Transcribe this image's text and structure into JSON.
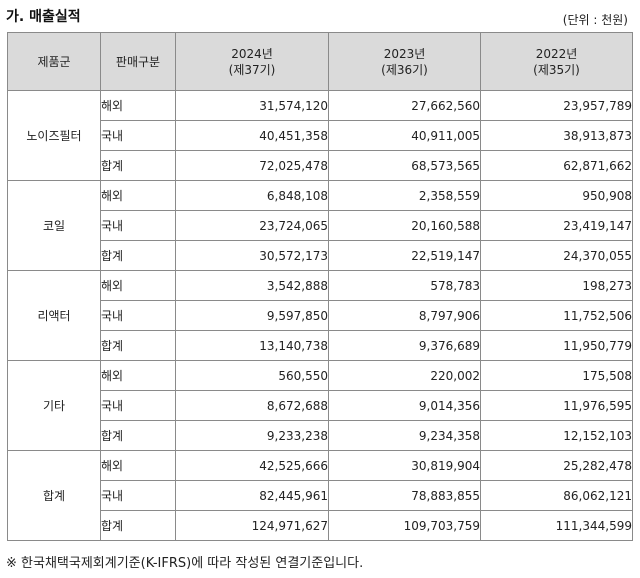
{
  "title": "가. 매출실적",
  "unit": "(단위 : 천원)",
  "table": {
    "header": {
      "product": "제품군",
      "type": "판매구분",
      "years": [
        {
          "year": "2024년",
          "period": "(제37기)"
        },
        {
          "year": "2023년",
          "period": "(제36기)"
        },
        {
          "year": "2022년",
          "period": "(제35기)"
        }
      ]
    },
    "groups": [
      {
        "product": "노이즈필터",
        "rows": [
          {
            "type": "해외",
            "values": [
              "31,574,120",
              "27,662,560",
              "23,957,789"
            ]
          },
          {
            "type": "국내",
            "values": [
              "40,451,358",
              "40,911,005",
              "38,913,873"
            ]
          },
          {
            "type": "합계",
            "values": [
              "72,025,478",
              "68,573,565",
              "62,871,662"
            ]
          }
        ]
      },
      {
        "product": "코일",
        "rows": [
          {
            "type": "해외",
            "values": [
              "6,848,108",
              "2,358,559",
              "950,908"
            ]
          },
          {
            "type": "국내",
            "values": [
              "23,724,065",
              "20,160,588",
              "23,419,147"
            ]
          },
          {
            "type": "합계",
            "values": [
              "30,572,173",
              "22,519,147",
              "24,370,055"
            ]
          }
        ]
      },
      {
        "product": "리액터",
        "rows": [
          {
            "type": "해외",
            "values": [
              "3,542,888",
              "578,783",
              "198,273"
            ]
          },
          {
            "type": "국내",
            "values": [
              "9,597,850",
              "8,797,906",
              "11,752,506"
            ]
          },
          {
            "type": "합계",
            "values": [
              "13,140,738",
              "9,376,689",
              "11,950,779"
            ]
          }
        ]
      },
      {
        "product": "기타",
        "rows": [
          {
            "type": "해외",
            "values": [
              "560,550",
              "220,002",
              "175,508"
            ]
          },
          {
            "type": "국내",
            "values": [
              "8,672,688",
              "9,014,356",
              "11,976,595"
            ]
          },
          {
            "type": "합계",
            "values": [
              "9,233,238",
              "9,234,358",
              "12,152,103"
            ]
          }
        ]
      },
      {
        "product": "합계",
        "rows": [
          {
            "type": "해외",
            "values": [
              "42,525,666",
              "30,819,904",
              "25,282,478"
            ]
          },
          {
            "type": "국내",
            "values": [
              "82,445,961",
              "78,883,855",
              "86,062,121"
            ]
          },
          {
            "type": "합계",
            "values": [
              "124,971,627",
              "109,703,759",
              "111,344,599"
            ]
          }
        ]
      }
    ]
  },
  "footnote": "※ 한국채택국제회계기준(K-IFRS)에 따라 작성된 연결기준입니다."
}
